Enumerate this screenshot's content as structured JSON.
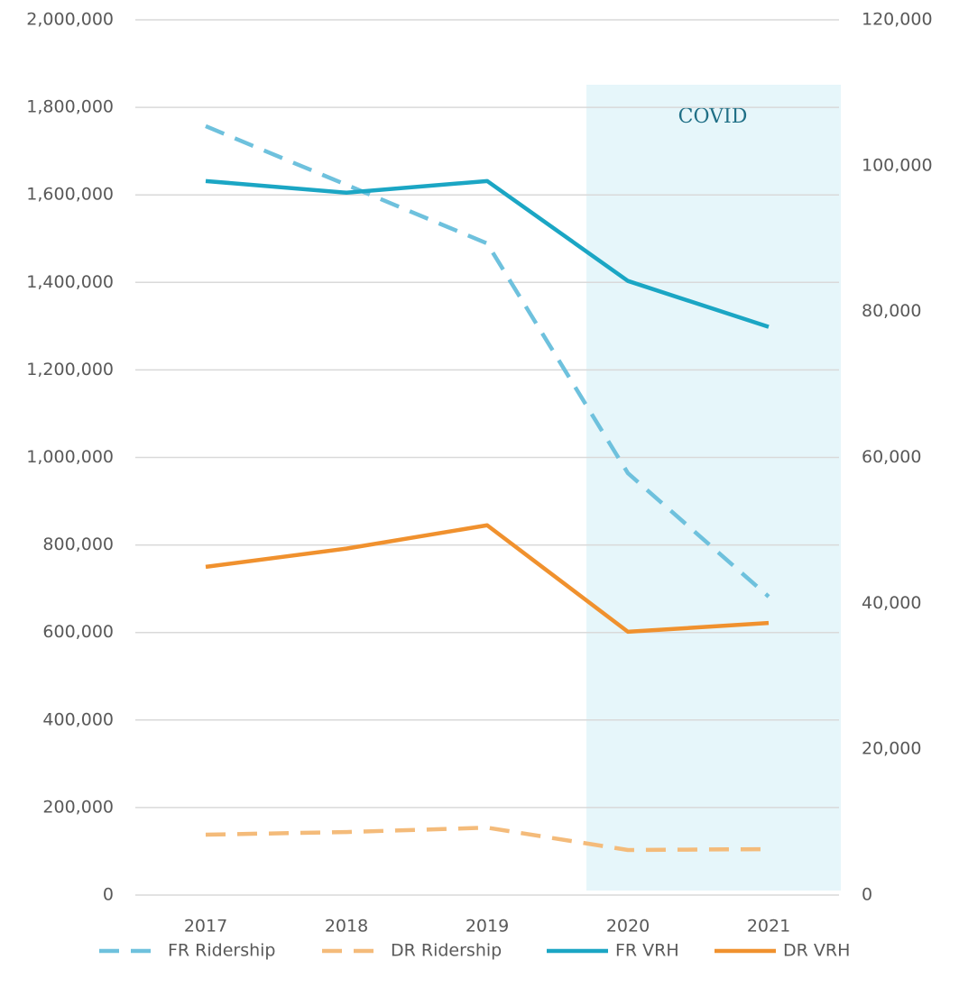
{
  "chart_data": {
    "type": "line",
    "categories": [
      "2017",
      "2018",
      "2019",
      "2020",
      "2021"
    ],
    "series": [
      {
        "name": "FR Ridership",
        "color": "#6ec1dd",
        "dashed": true,
        "axis": "y",
        "values": [
          1757000,
          1623000,
          1489000,
          964000,
          682000
        ]
      },
      {
        "name": "DR Ridership",
        "color": "#f4bb7a",
        "dashed": true,
        "axis": "y",
        "values": [
          138000,
          144000,
          154000,
          103000,
          105000
        ]
      },
      {
        "name": "FR VRH",
        "color": "#1ba6c4",
        "dashed": false,
        "axis": "y2",
        "values": [
          97900,
          96300,
          97900,
          84200,
          77900
        ]
      },
      {
        "name": "DR VRH",
        "color": "#f0912e",
        "dashed": false,
        "axis": "y2",
        "values": [
          45000,
          47500,
          50700,
          36100,
          37300
        ]
      }
    ],
    "annotation": "COVID",
    "ylim": [
      0,
      2000000
    ],
    "yticks": [
      0,
      {
        "value": 200000,
        "label": "200,000"
      },
      {
        "value": 400000,
        "label": "400,000"
      },
      {
        "value": 600000,
        "label": "600,000"
      },
      {
        "value": 800000,
        "label": "800,000"
      },
      {
        "value": 1000000,
        "label": "1,000,000"
      },
      {
        "value": 1200000,
        "label": "1,200,000"
      },
      {
        "value": 1400000,
        "label": "1,400,000"
      },
      {
        "value": 1600000,
        "label": "1,600,000"
      },
      {
        "value": 1800000,
        "label": "1,800,000"
      },
      {
        "value": 2000000,
        "label": "2,000,000"
      }
    ],
    "y2lim": [
      0,
      120000
    ],
    "y2ticks": [
      0,
      {
        "value": 20000,
        "label": "20,000"
      },
      {
        "value": 40000,
        "label": "40,000"
      },
      {
        "value": 60000,
        "label": "60,000"
      },
      {
        "value": 80000,
        "label": "80,000"
      },
      {
        "value": 100000,
        "label": "100,000"
      },
      {
        "value": 120000,
        "label": "120,000"
      }
    ],
    "grid": true,
    "legend": "bottom"
  }
}
